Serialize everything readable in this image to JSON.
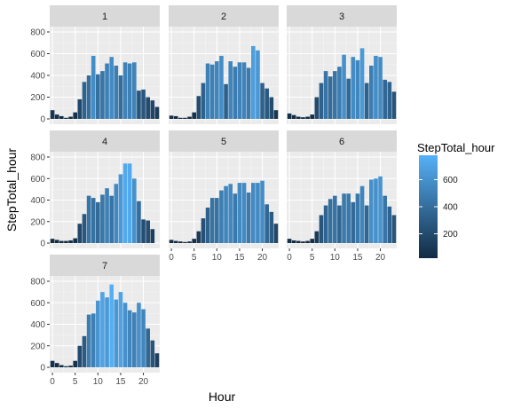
{
  "chart_data": {
    "type": "bar",
    "facet_variable": "weekday",
    "xlabel": "Hour",
    "ylabel": "StepTotal_hour",
    "x_ticks": [
      0,
      5,
      10,
      15,
      20
    ],
    "y_ticks": [
      0,
      200,
      400,
      600,
      800
    ],
    "ylim": [
      0,
      800
    ],
    "xlim": [
      -0.6,
      23.6
    ],
    "grid": true,
    "legend": {
      "title": "StepTotal_hour",
      "placement": "right",
      "ticks": [
        200,
        400,
        600
      ],
      "min": 20,
      "max": 780,
      "color_low": "#132B43",
      "color_high": "#56B1F7"
    },
    "hours": [
      0,
      1,
      2,
      3,
      4,
      5,
      6,
      7,
      8,
      9,
      10,
      11,
      12,
      13,
      14,
      15,
      16,
      17,
      18,
      19,
      20,
      21,
      22,
      23
    ],
    "facets": [
      {
        "label": "1",
        "values": [
          80,
          40,
          25,
          10,
          20,
          60,
          180,
          340,
          400,
          580,
          410,
          440,
          510,
          570,
          490,
          400,
          520,
          510,
          520,
          260,
          270,
          200,
          170,
          110
        ]
      },
      {
        "label": "2",
        "values": [
          30,
          25,
          10,
          10,
          20,
          60,
          210,
          330,
          510,
          500,
          530,
          580,
          320,
          530,
          480,
          520,
          520,
          470,
          670,
          630,
          330,
          280,
          200,
          80
        ]
      },
      {
        "label": "3",
        "values": [
          50,
          35,
          20,
          15,
          20,
          40,
          200,
          330,
          440,
          390,
          440,
          480,
          590,
          370,
          570,
          540,
          650,
          330,
          490,
          580,
          570,
          360,
          340,
          250
        ]
      },
      {
        "label": "4",
        "values": [
          40,
          30,
          20,
          20,
          25,
          45,
          180,
          270,
          440,
          420,
          380,
          450,
          510,
          440,
          550,
          640,
          740,
          740,
          600,
          390,
          220,
          210,
          130,
          0
        ]
      },
      {
        "label": "5",
        "values": [
          30,
          20,
          15,
          10,
          15,
          40,
          110,
          230,
          330,
          420,
          420,
          490,
          530,
          550,
          460,
          560,
          560,
          470,
          560,
          560,
          580,
          360,
          290,
          180
        ]
      },
      {
        "label": "6",
        "values": [
          40,
          25,
          20,
          15,
          20,
          40,
          110,
          260,
          350,
          410,
          440,
          350,
          460,
          460,
          380,
          460,
          530,
          350,
          590,
          600,
          620,
          440,
          340,
          260
        ]
      },
      {
        "label": "7",
        "values": [
          60,
          40,
          20,
          10,
          15,
          60,
          200,
          290,
          490,
          500,
          620,
          700,
          650,
          770,
          630,
          700,
          600,
          530,
          510,
          600,
          540,
          360,
          250,
          130
        ]
      }
    ]
  }
}
